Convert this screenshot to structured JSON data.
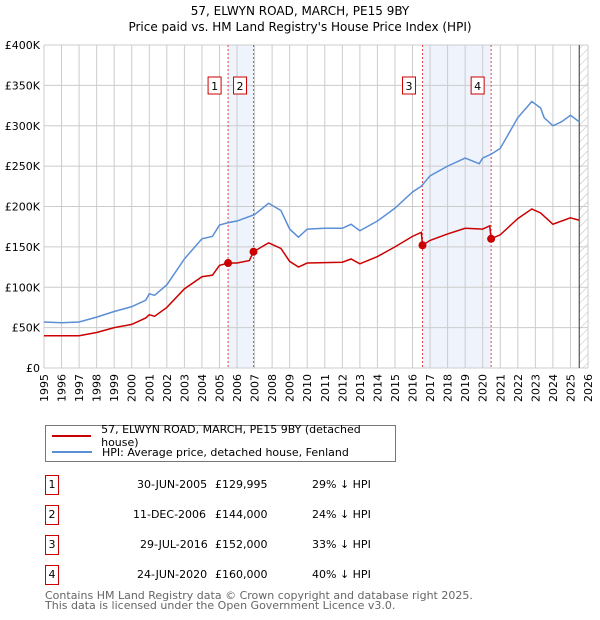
{
  "title": "57, ELWYN ROAD, MARCH, PE15 9BY",
  "subtitle": "Price paid vs. HM Land Registry's House Price Index (HPI)",
  "colors": {
    "property": "#cc0000",
    "hpi": "#5b8fd6",
    "shade": "#eef3fc"
  },
  "legend": [
    "57, ELWYN ROAD, MARCH, PE15 9BY (detached house)",
    "HPI: Average price, detached house, Fenland"
  ],
  "sales": [
    {
      "num": "1",
      "date": "30-JUN-2005",
      "price": "£129,995",
      "diff": "29% ↓ HPI",
      "x": 2005.49,
      "y": 129995
    },
    {
      "num": "2",
      "date": "11-DEC-2006",
      "price": "£144,000",
      "diff": "24% ↓ HPI",
      "x": 2006.94,
      "y": 144000
    },
    {
      "num": "3",
      "date": "29-JUL-2016",
      "price": "£152,000",
      "diff": "33% ↓ HPI",
      "x": 2016.57,
      "y": 152000
    },
    {
      "num": "4",
      "date": "24-JUN-2020",
      "price": "£160,000",
      "diff": "40% ↓ HPI",
      "x": 2020.48,
      "y": 160000
    }
  ],
  "footer": [
    "Contains HM Land Registry data © Crown copyright and database right 2025.",
    "This data is licensed under the Open Government Licence v3.0."
  ],
  "chart_data": {
    "type": "line",
    "xlim": [
      1995,
      2026
    ],
    "ylim": [
      0,
      400000
    ],
    "yticks": [
      "£0",
      "£50K",
      "£100K",
      "£150K",
      "£200K",
      "£250K",
      "£300K",
      "£350K",
      "£400K"
    ],
    "xticks": [
      "1995",
      "1996",
      "1997",
      "1998",
      "1999",
      "2000",
      "2001",
      "2002",
      "2003",
      "2004",
      "2005",
      "2006",
      "2007",
      "2008",
      "2009",
      "2010",
      "2011",
      "2012",
      "2013",
      "2014",
      "2015",
      "2016",
      "2017",
      "2018",
      "2019",
      "2020",
      "2021",
      "2022",
      "2023",
      "2024",
      "2025",
      "2026"
    ],
    "forecast_from": 2025.5,
    "series": [
      {
        "name": "HPI",
        "points": [
          [
            1995,
            57
          ],
          [
            1996,
            56
          ],
          [
            1997,
            57
          ],
          [
            1998,
            63
          ],
          [
            1999,
            70
          ],
          [
            2000,
            76
          ],
          [
            2000.8,
            84
          ],
          [
            2001,
            92
          ],
          [
            2001.3,
            90
          ],
          [
            2002,
            103
          ],
          [
            2003,
            135
          ],
          [
            2004,
            160
          ],
          [
            2004.6,
            163
          ],
          [
            2005,
            177
          ],
          [
            2005.5,
            180
          ],
          [
            2006,
            182
          ],
          [
            2007,
            190
          ],
          [
            2007.8,
            204
          ],
          [
            2008.5,
            195
          ],
          [
            2009,
            172
          ],
          [
            2009.5,
            162
          ],
          [
            2010,
            172
          ],
          [
            2011,
            173
          ],
          [
            2012,
            173
          ],
          [
            2012.5,
            178
          ],
          [
            2013,
            170
          ],
          [
            2014,
            182
          ],
          [
            2015,
            198
          ],
          [
            2016,
            218
          ],
          [
            2016.5,
            225
          ],
          [
            2017,
            238
          ],
          [
            2018,
            250
          ],
          [
            2019,
            260
          ],
          [
            2019.8,
            253
          ],
          [
            2020,
            260
          ],
          [
            2020.5,
            265
          ],
          [
            2021,
            272
          ],
          [
            2022,
            310
          ],
          [
            2022.8,
            330
          ],
          [
            2023.3,
            322
          ],
          [
            2023.5,
            310
          ],
          [
            2024,
            300
          ],
          [
            2024.5,
            305
          ],
          [
            2025,
            313
          ],
          [
            2025.5,
            305
          ]
        ]
      },
      {
        "name": "Property",
        "points": [
          [
            1995,
            40
          ],
          [
            1997,
            40
          ],
          [
            1998,
            44
          ],
          [
            1999,
            50
          ],
          [
            2000,
            54
          ],
          [
            2000.8,
            62
          ],
          [
            2001,
            66
          ],
          [
            2001.3,
            64
          ],
          [
            2002,
            75
          ],
          [
            2003,
            98
          ],
          [
            2004,
            113
          ],
          [
            2004.6,
            115
          ],
          [
            2005,
            127
          ],
          [
            2005.49,
            130
          ],
          [
            2006,
            130
          ],
          [
            2006.7,
            133
          ],
          [
            2006.94,
            144
          ],
          [
            2007.8,
            155
          ],
          [
            2008.5,
            148
          ],
          [
            2009,
            132
          ],
          [
            2009.5,
            125
          ],
          [
            2010,
            130
          ],
          [
            2012,
            131
          ],
          [
            2012.5,
            135
          ],
          [
            2013,
            129
          ],
          [
            2014,
            138
          ],
          [
            2015,
            150
          ],
          [
            2016,
            163
          ],
          [
            2016.5,
            168
          ],
          [
            2016.57,
            152
          ],
          [
            2017,
            158
          ],
          [
            2018,
            166
          ],
          [
            2019,
            173
          ],
          [
            2020,
            172
          ],
          [
            2020.4,
            176
          ],
          [
            2020.48,
            160
          ],
          [
            2021,
            165
          ],
          [
            2022,
            185
          ],
          [
            2022.8,
            197
          ],
          [
            2023.3,
            192
          ],
          [
            2023.5,
            188
          ],
          [
            2024,
            178
          ],
          [
            2025,
            186
          ],
          [
            2025.5,
            183
          ]
        ]
      }
    ]
  }
}
